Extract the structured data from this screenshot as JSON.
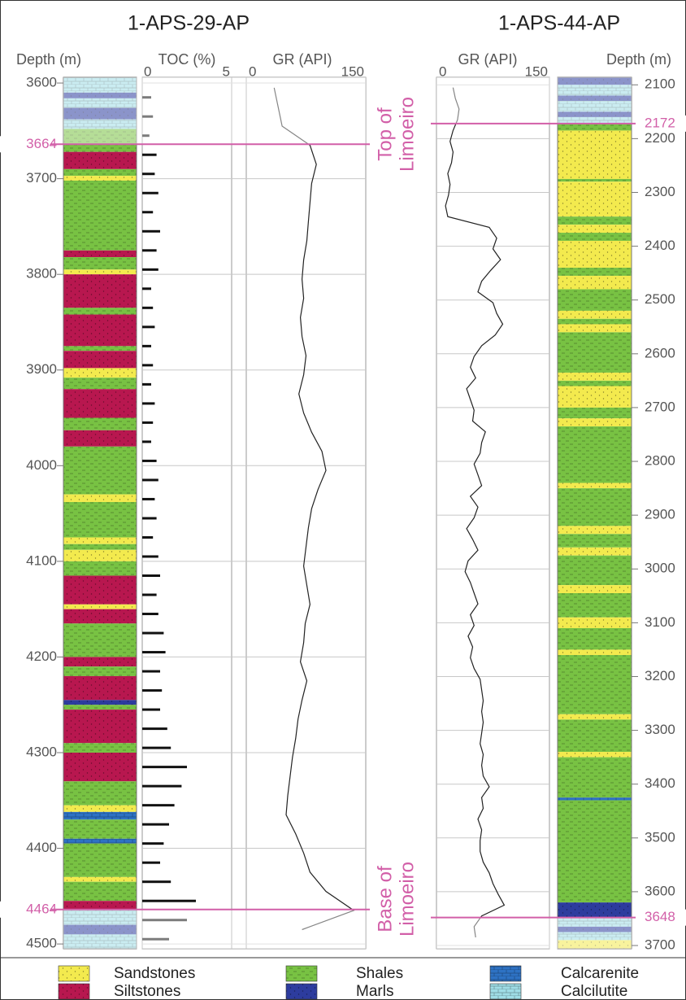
{
  "wells": [
    {
      "name": "1-APS-29-AP",
      "depth_label": "Depth (m)",
      "depth_lim": [
        3594,
        4505
      ],
      "depth_ticks": [
        3600,
        3700,
        3800,
        3900,
        4000,
        4100,
        4200,
        4300,
        4400,
        4500
      ],
      "markers": [
        3664,
        4464
      ],
      "lithology": [
        {
          "top": 3594,
          "base": 3610,
          "rock": "Calcilutite"
        },
        {
          "top": 3610,
          "base": 3616,
          "rock": "Marls"
        },
        {
          "top": 3616,
          "base": 3626,
          "rock": "Calcilutite"
        },
        {
          "top": 3626,
          "base": 3638,
          "rock": "Marls"
        },
        {
          "top": 3638,
          "base": 3648,
          "rock": "Calcilutite"
        },
        {
          "top": 3648,
          "base": 3664,
          "rock": "Shales"
        },
        {
          "top": 3664,
          "base": 3672,
          "rock": "Shales"
        },
        {
          "top": 3672,
          "base": 3690,
          "rock": "Siltstones"
        },
        {
          "top": 3690,
          "base": 3697,
          "rock": "Shales"
        },
        {
          "top": 3697,
          "base": 3702,
          "rock": "Sandstones"
        },
        {
          "top": 3702,
          "base": 3775,
          "rock": "Shales"
        },
        {
          "top": 3775,
          "base": 3782,
          "rock": "Siltstones"
        },
        {
          "top": 3782,
          "base": 3795,
          "rock": "Shales"
        },
        {
          "top": 3795,
          "base": 3800,
          "rock": "Sandstones"
        },
        {
          "top": 3800,
          "base": 3835,
          "rock": "Siltstones"
        },
        {
          "top": 3835,
          "base": 3842,
          "rock": "Shales"
        },
        {
          "top": 3842,
          "base": 3875,
          "rock": "Siltstones"
        },
        {
          "top": 3875,
          "base": 3880,
          "rock": "Shales"
        },
        {
          "top": 3880,
          "base": 3898,
          "rock": "Siltstones"
        },
        {
          "top": 3898,
          "base": 3908,
          "rock": "Sandstones"
        },
        {
          "top": 3908,
          "base": 3920,
          "rock": "Shales"
        },
        {
          "top": 3920,
          "base": 3950,
          "rock": "Siltstones"
        },
        {
          "top": 3950,
          "base": 3963,
          "rock": "Shales"
        },
        {
          "top": 3963,
          "base": 3980,
          "rock": "Siltstones"
        },
        {
          "top": 3980,
          "base": 4030,
          "rock": "Shales"
        },
        {
          "top": 4030,
          "base": 4038,
          "rock": "Sandstones"
        },
        {
          "top": 4038,
          "base": 4075,
          "rock": "Shales"
        },
        {
          "top": 4075,
          "base": 4082,
          "rock": "Sandstones"
        },
        {
          "top": 4082,
          "base": 4088,
          "rock": "Shales"
        },
        {
          "top": 4088,
          "base": 4100,
          "rock": "Sandstones"
        },
        {
          "top": 4100,
          "base": 4115,
          "rock": "Shales"
        },
        {
          "top": 4115,
          "base": 4145,
          "rock": "Siltstones"
        },
        {
          "top": 4145,
          "base": 4150,
          "rock": "Sandstones"
        },
        {
          "top": 4150,
          "base": 4165,
          "rock": "Siltstones"
        },
        {
          "top": 4165,
          "base": 4200,
          "rock": "Shales"
        },
        {
          "top": 4200,
          "base": 4210,
          "rock": "Siltstones"
        },
        {
          "top": 4210,
          "base": 4220,
          "rock": "Shales"
        },
        {
          "top": 4220,
          "base": 4245,
          "rock": "Siltstones"
        },
        {
          "top": 4245,
          "base": 4250,
          "rock": "Marls"
        },
        {
          "top": 4250,
          "base": 4255,
          "rock": "Shales"
        },
        {
          "top": 4255,
          "base": 4290,
          "rock": "Siltstones"
        },
        {
          "top": 4290,
          "base": 4300,
          "rock": "Shales"
        },
        {
          "top": 4300,
          "base": 4330,
          "rock": "Siltstones"
        },
        {
          "top": 4330,
          "base": 4355,
          "rock": "Shales"
        },
        {
          "top": 4355,
          "base": 4362,
          "rock": "Sandstones"
        },
        {
          "top": 4362,
          "base": 4370,
          "rock": "Calcarenite"
        },
        {
          "top": 4370,
          "base": 4390,
          "rock": "Shales"
        },
        {
          "top": 4390,
          "base": 4395,
          "rock": "Calcarenite"
        },
        {
          "top": 4395,
          "base": 4430,
          "rock": "Shales"
        },
        {
          "top": 4430,
          "base": 4435,
          "rock": "Sandstones"
        },
        {
          "top": 4435,
          "base": 4455,
          "rock": "Shales"
        },
        {
          "top": 4455,
          "base": 4464,
          "rock": "Siltstones"
        },
        {
          "top": 4464,
          "base": 4480,
          "rock": "Calcilutite"
        },
        {
          "top": 4480,
          "base": 4490,
          "rock": "Marls"
        },
        {
          "top": 4490,
          "base": 4505,
          "rock": "Calcilutite"
        }
      ],
      "toc": {
        "label": "TOC (%)",
        "lim": [
          0,
          5
        ],
        "ticks": [
          0,
          5
        ],
        "depth": [
          3615,
          3635,
          3655,
          3675,
          3695,
          3715,
          3735,
          3755,
          3775,
          3795,
          3815,
          3835,
          3855,
          3875,
          3895,
          3915,
          3935,
          3955,
          3975,
          3995,
          4015,
          4035,
          4055,
          4075,
          4095,
          4115,
          4135,
          4155,
          4175,
          4195,
          4215,
          4235,
          4255,
          4275,
          4295,
          4315,
          4335,
          4355,
          4375,
          4395,
          4415,
          4435,
          4455,
          4475,
          4495
        ],
        "values": [
          0.5,
          0.6,
          0.4,
          0.8,
          0.7,
          0.9,
          0.6,
          1.0,
          0.8,
          0.9,
          0.5,
          0.6,
          0.7,
          0.5,
          0.6,
          0.5,
          0.7,
          0.6,
          0.5,
          0.8,
          0.9,
          0.7,
          0.8,
          0.6,
          0.9,
          1.0,
          0.8,
          0.9,
          1.2,
          1.3,
          1.0,
          1.1,
          1.0,
          1.4,
          1.6,
          2.5,
          2.2,
          1.8,
          1.5,
          1.2,
          1.0,
          1.6,
          3.0,
          2.5,
          1.5
        ]
      },
      "gr": {
        "label": "GR (API)",
        "lim": [
          0,
          150
        ],
        "ticks": [
          0,
          150
        ],
        "depth": [
          3605,
          3625,
          3645,
          3665,
          3685,
          3705,
          3725,
          3745,
          3765,
          3785,
          3805,
          3825,
          3845,
          3865,
          3885,
          3905,
          3925,
          3945,
          3965,
          3985,
          4005,
          4025,
          4045,
          4065,
          4085,
          4105,
          4125,
          4145,
          4165,
          4185,
          4205,
          4225,
          4245,
          4265,
          4285,
          4305,
          4325,
          4345,
          4365,
          4385,
          4405,
          4425,
          4445,
          4465,
          4485
        ],
        "values": [
          35,
          40,
          45,
          80,
          88,
          82,
          80,
          78,
          76,
          72,
          70,
          72,
          68,
          70,
          75,
          72,
          66,
          72,
          82,
          95,
          100,
          90,
          82,
          78,
          75,
          72,
          76,
          80,
          74,
          72,
          68,
          76,
          70,
          65,
          62,
          58,
          55,
          52,
          50,
          62,
          72,
          80,
          100,
          135,
          70
        ]
      }
    },
    {
      "name": "1-APS-44-AP",
      "depth_label": "Depth (m)",
      "depth_lim": [
        2086,
        3706
      ],
      "depth_ticks": [
        2100,
        2200,
        2300,
        2400,
        2500,
        2600,
        2700,
        2800,
        2900,
        3000,
        3100,
        3200,
        3300,
        3400,
        3500,
        3600,
        3700
      ],
      "markers": [
        2172,
        3648
      ],
      "lithology": [
        {
          "top": 2086,
          "base": 2100,
          "rock": "Marls"
        },
        {
          "top": 2100,
          "base": 2120,
          "rock": "Calcilutite"
        },
        {
          "top": 2120,
          "base": 2130,
          "rock": "Marls"
        },
        {
          "top": 2130,
          "base": 2150,
          "rock": "Calcilutite"
        },
        {
          "top": 2150,
          "base": 2160,
          "rock": "Marls"
        },
        {
          "top": 2160,
          "base": 2172,
          "rock": "Calcilutite"
        },
        {
          "top": 2172,
          "base": 2185,
          "rock": "Shales"
        },
        {
          "top": 2185,
          "base": 2275,
          "rock": "Sandstones"
        },
        {
          "top": 2275,
          "base": 2280,
          "rock": "Shales"
        },
        {
          "top": 2280,
          "base": 2345,
          "rock": "Sandstones"
        },
        {
          "top": 2345,
          "base": 2360,
          "rock": "Shales"
        },
        {
          "top": 2360,
          "base": 2375,
          "rock": "Sandstones"
        },
        {
          "top": 2375,
          "base": 2390,
          "rock": "Shales"
        },
        {
          "top": 2390,
          "base": 2440,
          "rock": "Sandstones"
        },
        {
          "top": 2440,
          "base": 2455,
          "rock": "Shales"
        },
        {
          "top": 2455,
          "base": 2480,
          "rock": "Sandstones"
        },
        {
          "top": 2480,
          "base": 2520,
          "rock": "Shales"
        },
        {
          "top": 2520,
          "base": 2535,
          "rock": "Sandstones"
        },
        {
          "top": 2535,
          "base": 2545,
          "rock": "Shales"
        },
        {
          "top": 2545,
          "base": 2560,
          "rock": "Sandstones"
        },
        {
          "top": 2560,
          "base": 2635,
          "rock": "Shales"
        },
        {
          "top": 2635,
          "base": 2650,
          "rock": "Sandstones"
        },
        {
          "top": 2650,
          "base": 2660,
          "rock": "Shales"
        },
        {
          "top": 2660,
          "base": 2700,
          "rock": "Sandstones"
        },
        {
          "top": 2700,
          "base": 2720,
          "rock": "Shales"
        },
        {
          "top": 2720,
          "base": 2735,
          "rock": "Sandstones"
        },
        {
          "top": 2735,
          "base": 2840,
          "rock": "Shales"
        },
        {
          "top": 2840,
          "base": 2850,
          "rock": "Sandstones"
        },
        {
          "top": 2850,
          "base": 2920,
          "rock": "Shales"
        },
        {
          "top": 2920,
          "base": 2935,
          "rock": "Sandstones"
        },
        {
          "top": 2935,
          "base": 2960,
          "rock": "Shales"
        },
        {
          "top": 2960,
          "base": 2975,
          "rock": "Sandstones"
        },
        {
          "top": 2975,
          "base": 3030,
          "rock": "Shales"
        },
        {
          "top": 3030,
          "base": 3045,
          "rock": "Sandstones"
        },
        {
          "top": 3045,
          "base": 3090,
          "rock": "Shales"
        },
        {
          "top": 3090,
          "base": 3110,
          "rock": "Sandstones"
        },
        {
          "top": 3110,
          "base": 3150,
          "rock": "Shales"
        },
        {
          "top": 3150,
          "base": 3160,
          "rock": "Sandstones"
        },
        {
          "top": 3160,
          "base": 3270,
          "rock": "Shales"
        },
        {
          "top": 3270,
          "base": 3280,
          "rock": "Sandstones"
        },
        {
          "top": 3280,
          "base": 3340,
          "rock": "Shales"
        },
        {
          "top": 3340,
          "base": 3350,
          "rock": "Sandstones"
        },
        {
          "top": 3350,
          "base": 3425,
          "rock": "Shales"
        },
        {
          "top": 3425,
          "base": 3430,
          "rock": "Calcarenite"
        },
        {
          "top": 3430,
          "base": 3620,
          "rock": "Shales"
        },
        {
          "top": 3620,
          "base": 3648,
          "rock": "Marls"
        },
        {
          "top": 3648,
          "base": 3665,
          "rock": "Calcilutite"
        },
        {
          "top": 3665,
          "base": 3675,
          "rock": "Marls"
        },
        {
          "top": 3675,
          "base": 3690,
          "rock": "Calcilutite"
        },
        {
          "top": 3690,
          "base": 3706,
          "rock": "Sandstones"
        }
      ],
      "gr": {
        "label": "GR (API)",
        "lim": [
          0,
          150
        ],
        "ticks": [
          0,
          150
        ],
        "depth": [
          2105,
          2125,
          2145,
          2165,
          2185,
          2205,
          2225,
          2245,
          2265,
          2285,
          2305,
          2325,
          2345,
          2365,
          2385,
          2405,
          2425,
          2445,
          2465,
          2485,
          2505,
          2525,
          2545,
          2565,
          2585,
          2605,
          2625,
          2645,
          2665,
          2685,
          2705,
          2725,
          2745,
          2765,
          2785,
          2805,
          2825,
          2845,
          2865,
          2885,
          2905,
          2925,
          2945,
          2965,
          2985,
          3005,
          3025,
          3045,
          3065,
          3085,
          3105,
          3125,
          3145,
          3165,
          3185,
          3205,
          3225,
          3245,
          3265,
          3285,
          3305,
          3325,
          3345,
          3365,
          3385,
          3405,
          3425,
          3445,
          3465,
          3485,
          3505,
          3525,
          3545,
          3565,
          3585,
          3605,
          3625,
          3645,
          3665,
          3685
        ],
        "values": [
          22,
          25,
          30,
          28,
          22,
          18,
          22,
          20,
          15,
          18,
          16,
          12,
          15,
          70,
          80,
          75,
          85,
          72,
          60,
          55,
          75,
          80,
          88,
          78,
          60,
          50,
          45,
          52,
          40,
          45,
          50,
          48,
          65,
          60,
          58,
          50,
          55,
          60,
          45,
          55,
          50,
          40,
          48,
          55,
          42,
          38,
          45,
          50,
          55,
          45,
          50,
          42,
          48,
          45,
          50,
          58,
          60,
          62,
          60,
          62,
          60,
          58,
          62,
          60,
          62,
          70,
          60,
          62,
          55,
          60,
          58,
          58,
          62,
          70,
          75,
          82,
          90,
          60,
          50,
          52
        ]
      }
    }
  ],
  "annotations": {
    "top": [
      "Top of",
      "Limoeiro"
    ],
    "base": [
      "Base of",
      "Limoeiro"
    ]
  },
  "legend": [
    {
      "name": "Sandstones",
      "color": "#f3ea4e",
      "texture": "dots"
    },
    {
      "name": "Siltstones",
      "color": "#b8174f",
      "texture": "dots"
    },
    {
      "name": "Shales",
      "color": "#78c243",
      "texture": "dashes"
    },
    {
      "name": "Marls",
      "color": "#2d3c9e",
      "texture": "dots"
    },
    {
      "name": "Calcarenite",
      "color": "#2e72c4",
      "texture": "bricks"
    },
    {
      "name": "Calcilutite",
      "color": "#9fdde6",
      "texture": "bricks"
    }
  ]
}
